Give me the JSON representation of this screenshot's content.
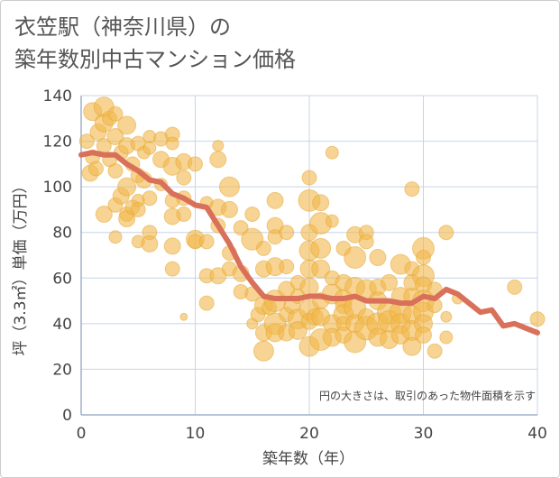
{
  "title_line1": "衣笠駅（神奈川県）の",
  "title_line2": "築年数別中古マンション価格",
  "chart_data": {
    "type": "scatter",
    "xlabel": "築年数（年）",
    "ylabel": "坪（3.3㎡）単価（万円）",
    "xlim": [
      0,
      40
    ],
    "ylim": [
      0,
      140
    ],
    "xticks": [
      "0",
      "10",
      "20",
      "30",
      "40"
    ],
    "yticks": [
      "0",
      "20",
      "40",
      "60",
      "80",
      "100",
      "120",
      "140"
    ],
    "grid": true,
    "note": "円の大きさは、取引のあった物件面積を示す",
    "colors": {
      "bubble": "#f2b84b",
      "line": "#d9705a",
      "grid": "#c8d4e6"
    },
    "bubbles": [
      [
        0.5,
        120,
        8
      ],
      [
        0.8,
        106,
        9
      ],
      [
        1,
        133,
        10
      ],
      [
        1,
        113,
        8
      ],
      [
        1.3,
        108,
        8
      ],
      [
        1.5,
        124,
        9
      ],
      [
        2,
        135,
        11
      ],
      [
        2,
        128,
        10
      ],
      [
        2,
        118,
        8
      ],
      [
        2,
        88,
        9
      ],
      [
        2.5,
        130,
        8
      ],
      [
        2.5,
        112,
        8
      ],
      [
        3,
        132,
        8
      ],
      [
        3,
        122,
        9
      ],
      [
        3,
        107,
        8
      ],
      [
        3,
        92,
        8
      ],
      [
        3,
        78,
        7
      ],
      [
        3.5,
        115,
        8
      ],
      [
        3.5,
        96,
        9
      ],
      [
        4,
        127,
        10
      ],
      [
        4,
        118,
        9
      ],
      [
        4,
        100,
        10
      ],
      [
        4,
        88,
        8
      ],
      [
        4,
        86,
        9
      ],
      [
        4.5,
        110,
        8
      ],
      [
        4.5,
        91,
        8
      ],
      [
        5,
        119,
        8
      ],
      [
        5,
        105,
        8
      ],
      [
        5,
        94,
        7
      ],
      [
        5,
        90,
        8
      ],
      [
        5,
        76,
        7
      ],
      [
        5.5,
        115,
        7
      ],
      [
        5.5,
        103,
        9
      ],
      [
        6,
        122,
        7
      ],
      [
        6,
        117,
        7
      ],
      [
        6,
        95,
        8
      ],
      [
        6,
        80,
        8
      ],
      [
        6,
        75,
        9
      ],
      [
        7,
        121,
        8
      ],
      [
        7,
        112,
        9
      ],
      [
        7,
        101,
        7
      ],
      [
        8,
        123,
        8
      ],
      [
        8,
        119,
        7
      ],
      [
        8,
        109,
        10
      ],
      [
        8,
        94,
        8
      ],
      [
        8,
        87,
        9
      ],
      [
        8,
        74,
        9
      ],
      [
        8,
        64,
        8
      ],
      [
        9,
        111,
        9
      ],
      [
        9,
        104,
        8
      ],
      [
        9,
        95,
        8
      ],
      [
        9,
        88,
        8
      ],
      [
        9,
        43,
        4
      ],
      [
        10,
        110,
        8
      ],
      [
        10,
        77,
        10
      ],
      [
        10,
        76,
        8
      ],
      [
        11,
        93,
        7
      ],
      [
        11,
        76,
        8
      ],
      [
        11,
        61,
        8
      ],
      [
        11,
        49,
        8
      ],
      [
        12,
        118,
        6
      ],
      [
        12,
        112,
        9
      ],
      [
        12,
        91,
        9
      ],
      [
        12,
        83,
        8
      ],
      [
        12,
        61,
        9
      ],
      [
        13,
        100,
        11
      ],
      [
        13,
        90,
        9
      ],
      [
        13,
        71,
        8
      ],
      [
        13,
        64,
        8
      ],
      [
        14,
        82,
        8
      ],
      [
        14,
        62,
        9
      ],
      [
        14,
        54,
        8
      ],
      [
        15,
        88,
        8
      ],
      [
        15,
        77,
        12
      ],
      [
        15,
        53,
        8
      ],
      [
        15,
        40,
        6
      ],
      [
        15.5,
        44,
        8
      ],
      [
        16,
        73,
        8
      ],
      [
        16,
        64,
        9
      ],
      [
        16,
        48,
        10
      ],
      [
        16,
        36,
        9
      ],
      [
        16,
        28,
        11
      ],
      [
        16.5,
        47,
        8
      ],
      [
        17,
        94,
        9
      ],
      [
        17,
        83,
        9
      ],
      [
        17,
        78,
        8
      ],
      [
        17,
        65,
        10
      ],
      [
        17,
        50,
        12
      ],
      [
        17,
        40,
        12
      ],
      [
        17,
        36,
        10
      ],
      [
        18,
        80,
        8
      ],
      [
        18,
        65,
        8
      ],
      [
        18,
        55,
        9
      ],
      [
        18,
        44,
        8
      ],
      [
        18,
        36,
        9
      ],
      [
        18.5,
        48,
        9
      ],
      [
        19,
        58,
        8
      ],
      [
        19,
        52,
        8
      ],
      [
        19,
        42,
        11
      ],
      [
        19,
        37,
        10
      ],
      [
        20,
        104,
        8
      ],
      [
        20,
        94,
        12
      ],
      [
        20,
        80,
        9
      ],
      [
        20,
        72,
        11
      ],
      [
        20,
        64,
        10
      ],
      [
        20,
        56,
        10
      ],
      [
        20,
        46,
        11
      ],
      [
        20,
        41,
        9
      ],
      [
        20,
        30,
        11
      ],
      [
        20.5,
        43,
        9
      ],
      [
        21,
        93,
        9
      ],
      [
        21,
        84,
        12
      ],
      [
        21,
        73,
        11
      ],
      [
        21,
        64,
        10
      ],
      [
        21,
        50,
        9
      ],
      [
        21,
        43,
        10
      ],
      [
        21,
        33,
        12
      ],
      [
        22,
        115,
        7
      ],
      [
        22,
        85,
        7
      ],
      [
        22,
        60,
        8
      ],
      [
        22,
        53,
        11
      ],
      [
        22,
        40,
        10
      ],
      [
        22,
        34,
        10
      ],
      [
        23,
        73,
        8
      ],
      [
        23,
        58,
        9
      ],
      [
        23,
        51,
        10
      ],
      [
        23,
        48,
        9
      ],
      [
        23,
        44,
        11
      ],
      [
        23,
        40,
        8
      ],
      [
        23,
        35,
        9
      ],
      [
        24,
        79,
        9
      ],
      [
        24,
        69,
        12
      ],
      [
        24,
        56,
        11
      ],
      [
        24,
        47,
        12
      ],
      [
        24,
        40,
        10
      ],
      [
        24,
        32,
        12
      ],
      [
        25,
        80,
        8
      ],
      [
        25,
        76,
        8
      ],
      [
        25,
        55,
        11
      ],
      [
        25,
        43,
        9
      ],
      [
        25,
        38,
        13
      ],
      [
        26,
        69,
        9
      ],
      [
        26,
        56,
        9
      ],
      [
        26,
        50,
        10
      ],
      [
        26,
        40,
        12
      ],
      [
        26,
        34,
        10
      ],
      [
        27,
        58,
        9
      ],
      [
        27,
        45,
        13
      ],
      [
        27,
        41,
        12
      ],
      [
        27,
        33,
        10
      ],
      [
        28,
        66,
        11
      ],
      [
        28,
        52,
        10
      ],
      [
        28,
        45,
        12
      ],
      [
        28,
        40,
        11
      ],
      [
        28,
        35,
        10
      ],
      [
        29,
        99,
        8
      ],
      [
        29,
        64,
        8
      ],
      [
        29,
        58,
        9
      ],
      [
        29,
        52,
        9
      ],
      [
        29,
        44,
        10
      ],
      [
        29,
        37,
        11
      ],
      [
        29,
        30,
        10
      ],
      [
        30,
        73,
        12
      ],
      [
        30,
        69,
        8
      ],
      [
        30,
        61,
        12
      ],
      [
        30,
        57,
        9
      ],
      [
        30,
        50,
        12
      ],
      [
        30,
        45,
        11
      ],
      [
        30,
        40,
        10
      ],
      [
        30,
        35,
        9
      ],
      [
        31,
        55,
        8
      ],
      [
        31,
        48,
        8
      ],
      [
        31,
        28,
        8
      ],
      [
        32,
        80,
        8
      ],
      [
        32,
        43,
        6
      ],
      [
        32,
        34,
        7
      ],
      [
        33,
        51,
        6
      ],
      [
        38,
        56,
        8
      ],
      [
        40,
        42,
        8
      ]
    ],
    "avg_line": {
      "x": [
        0,
        1,
        2,
        3,
        4,
        5,
        6,
        7,
        8,
        9,
        10,
        11,
        12,
        13,
        14,
        15,
        16,
        17,
        18,
        19,
        20,
        21,
        22,
        23,
        24,
        25,
        26,
        27,
        28,
        29,
        30,
        31,
        32,
        33,
        34,
        35,
        36,
        37,
        38,
        39,
        40
      ],
      "y": [
        114,
        115,
        114,
        114,
        110,
        107,
        103,
        102,
        97,
        95,
        92,
        91,
        83,
        75,
        65,
        58,
        52,
        51,
        51,
        51,
        52,
        52,
        51,
        51,
        52,
        50,
        50,
        50,
        49,
        49,
        52,
        51,
        55,
        53,
        49,
        45,
        46,
        39,
        40,
        38,
        36
      ]
    }
  }
}
